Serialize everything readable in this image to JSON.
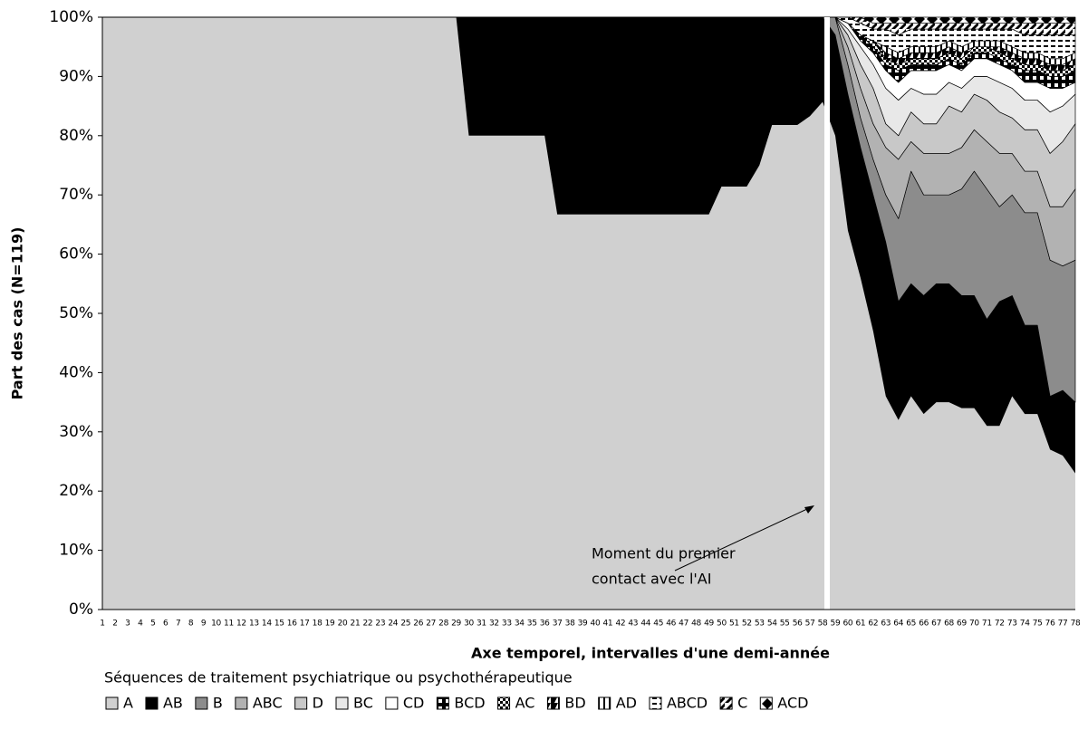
{
  "chart_data": {
    "type": "stacked_area_100",
    "y_label": "Part des cas (N=119)",
    "x_label": "Axe temporel, intervalles d'une demi-année",
    "legend_title": "Séquences de traitement psychiatrique ou psychothérapeutique",
    "legend_position": "bottom",
    "annotation": [
      "Moment du premier",
      "contact avec l'AI"
    ],
    "ylim": [
      0,
      100
    ],
    "yticks": [
      {
        "value": 0,
        "label": "0%"
      },
      {
        "value": 10,
        "label": "10%"
      },
      {
        "value": 20,
        "label": "20%"
      },
      {
        "value": 30,
        "label": "30%"
      },
      {
        "value": 40,
        "label": "40%"
      },
      {
        "value": 50,
        "label": "50%"
      },
      {
        "value": 60,
        "label": "60%"
      },
      {
        "value": 70,
        "label": "70%"
      },
      {
        "value": 80,
        "label": "80%"
      },
      {
        "value": 90,
        "label": "90%"
      },
      {
        "value": 100,
        "label": "100%"
      }
    ],
    "categories": [
      "1",
      "2",
      "3",
      "4",
      "5",
      "6",
      "7",
      "8",
      "9",
      "10",
      "11",
      "12",
      "13",
      "14",
      "15",
      "16",
      "17",
      "18",
      "19",
      "20",
      "21",
      "22",
      "23",
      "24",
      "25",
      "26",
      "27",
      "28",
      "29",
      "30",
      "31",
      "32",
      "33",
      "34",
      "35",
      "36",
      "37",
      "38",
      "39",
      "40",
      "41",
      "42",
      "43",
      "44",
      "45",
      "46",
      "47",
      "48",
      "49",
      "50",
      "51",
      "52",
      "53",
      "54",
      "55",
      "56",
      "57",
      "58",
      "59",
      "60",
      "61",
      "62",
      "63",
      "64",
      "65",
      "66",
      "67",
      "68",
      "69",
      "70",
      "71",
      "72",
      "73",
      "74",
      "75",
      "76",
      "77",
      "78"
    ],
    "series": [
      {
        "name": "A",
        "color": "#d0d0d0",
        "values": [
          100,
          100,
          100,
          100,
          100,
          100,
          100,
          100,
          100,
          100,
          100,
          100,
          100,
          100,
          100,
          100,
          100,
          100,
          100,
          100,
          100,
          100,
          100,
          100,
          100,
          100,
          100,
          100,
          100,
          80,
          80,
          80,
          80,
          80,
          80,
          80,
          66.7,
          66.7,
          66.7,
          66.7,
          66.7,
          66.7,
          66.7,
          66.7,
          66.7,
          66.7,
          66.7,
          66.7,
          66.7,
          71.4,
          71.4,
          71.4,
          75,
          81.8,
          81.8,
          81.8,
          83.3,
          85.7,
          80,
          64,
          56,
          47,
          36,
          32,
          36,
          33,
          35,
          35,
          34,
          34,
          31,
          31,
          36,
          33,
          33,
          27,
          26,
          23
        ]
      },
      {
        "name": "AB",
        "color": "#000000",
        "values": [
          0,
          0,
          0,
          0,
          0,
          0,
          0,
          0,
          0,
          0,
          0,
          0,
          0,
          0,
          0,
          0,
          0,
          0,
          0,
          0,
          0,
          0,
          0,
          0,
          0,
          0,
          0,
          0,
          0,
          20,
          20,
          20,
          20,
          20,
          20,
          20,
          33.3,
          33.3,
          33.3,
          33.3,
          33.3,
          33.3,
          33.3,
          33.3,
          33.3,
          33.3,
          33.3,
          33.3,
          33.3,
          28.6,
          28.6,
          28.6,
          25,
          18.2,
          18.2,
          18.2,
          16.7,
          14.3,
          17,
          23,
          22,
          23,
          26,
          20,
          19,
          20,
          20,
          20,
          19,
          19,
          18,
          21,
          17,
          15,
          15,
          9,
          11,
          12
        ]
      },
      {
        "name": "B",
        "color": "#8c8c8c",
        "values": [
          0,
          0,
          0,
          0,
          0,
          0,
          0,
          0,
          0,
          0,
          0,
          0,
          0,
          0,
          0,
          0,
          0,
          0,
          0,
          0,
          0,
          0,
          0,
          0,
          0,
          0,
          0,
          0,
          0,
          0,
          0,
          0,
          0,
          0,
          0,
          0,
          0,
          0,
          0,
          0,
          0,
          0,
          0,
          0,
          0,
          0,
          0,
          0,
          0,
          0,
          0,
          0,
          0,
          0,
          0,
          0,
          0,
          0,
          3,
          5,
          5,
          6,
          8,
          14,
          19,
          17,
          15,
          15,
          18,
          21,
          22,
          16,
          17,
          19,
          19,
          23,
          21,
          24
        ]
      },
      {
        "name": "ABC",
        "color": "#b2b2b2",
        "values": [
          0,
          0,
          0,
          0,
          0,
          0,
          0,
          0,
          0,
          0,
          0,
          0,
          0,
          0,
          0,
          0,
          0,
          0,
          0,
          0,
          0,
          0,
          0,
          0,
          0,
          0,
          0,
          0,
          0,
          0,
          0,
          0,
          0,
          0,
          0,
          0,
          0,
          0,
          0,
          0,
          0,
          0,
          0,
          0,
          0,
          0,
          0,
          0,
          0,
          0,
          0,
          0,
          0,
          0,
          0,
          0,
          0,
          0,
          0,
          3,
          5,
          6,
          8,
          10,
          5,
          7,
          7,
          7,
          7,
          7,
          8,
          9,
          7,
          7,
          7,
          9,
          10,
          12
        ]
      },
      {
        "name": "D",
        "color": "#c8c8c8",
        "values": [
          0,
          0,
          0,
          0,
          0,
          0,
          0,
          0,
          0,
          0,
          0,
          0,
          0,
          0,
          0,
          0,
          0,
          0,
          0,
          0,
          0,
          0,
          0,
          0,
          0,
          0,
          0,
          0,
          0,
          0,
          0,
          0,
          0,
          0,
          0,
          0,
          0,
          0,
          0,
          0,
          0,
          0,
          0,
          0,
          0,
          0,
          0,
          0,
          0,
          0,
          0,
          0,
          0,
          0,
          0,
          0,
          0,
          0,
          0,
          2,
          4,
          6,
          4,
          4,
          5,
          5,
          5,
          8,
          6,
          6,
          7,
          7,
          6,
          7,
          7,
          9,
          11,
          11
        ]
      },
      {
        "name": "BC",
        "color": "#e8e8e8",
        "values": [
          0,
          0,
          0,
          0,
          0,
          0,
          0,
          0,
          0,
          0,
          0,
          0,
          0,
          0,
          0,
          0,
          0,
          0,
          0,
          0,
          0,
          0,
          0,
          0,
          0,
          0,
          0,
          0,
          0,
          0,
          0,
          0,
          0,
          0,
          0,
          0,
          0,
          0,
          0,
          0,
          0,
          0,
          0,
          0,
          0,
          0,
          0,
          0,
          0,
          0,
          0,
          0,
          0,
          0,
          0,
          0,
          0,
          0,
          0,
          1,
          3,
          4,
          6,
          6,
          4,
          5,
          5,
          4,
          4,
          3,
          4,
          5,
          5,
          5,
          5,
          7,
          6,
          5
        ]
      },
      {
        "name": "CD",
        "color": "#ffffff",
        "values": [
          0,
          0,
          0,
          0,
          0,
          0,
          0,
          0,
          0,
          0,
          0,
          0,
          0,
          0,
          0,
          0,
          0,
          0,
          0,
          0,
          0,
          0,
          0,
          0,
          0,
          0,
          0,
          0,
          0,
          0,
          0,
          0,
          0,
          0,
          0,
          0,
          0,
          0,
          0,
          0,
          0,
          0,
          0,
          0,
          0,
          0,
          0,
          0,
          0,
          0,
          0,
          0,
          0,
          0,
          0,
          0,
          0,
          0,
          0,
          1,
          1,
          2,
          3,
          3,
          3,
          4,
          4,
          3,
          3,
          3,
          3,
          3,
          3,
          3,
          3,
          4,
          3,
          2
        ]
      },
      {
        "name": "BCD",
        "color": "#000000",
        "pattern": "corner",
        "values": [
          0,
          0,
          0,
          0,
          0,
          0,
          0,
          0,
          0,
          0,
          0,
          0,
          0,
          0,
          0,
          0,
          0,
          0,
          0,
          0,
          0,
          0,
          0,
          0,
          0,
          0,
          0,
          0,
          0,
          0,
          0,
          0,
          0,
          0,
          0,
          0,
          0,
          0,
          0,
          0,
          0,
          0,
          0,
          0,
          0,
          0,
          0,
          0,
          0,
          0,
          0,
          0,
          0,
          0,
          0,
          0,
          0,
          0,
          0,
          0,
          1,
          1,
          1,
          2,
          1,
          1,
          1,
          1,
          1,
          1,
          1,
          1,
          1,
          2,
          2,
          2,
          2,
          2
        ]
      },
      {
        "name": "AC",
        "color": "#000000",
        "pattern": "checker",
        "values": [
          0,
          0,
          0,
          0,
          0,
          0,
          0,
          0,
          0,
          0,
          0,
          0,
          0,
          0,
          0,
          0,
          0,
          0,
          0,
          0,
          0,
          0,
          0,
          0,
          0,
          0,
          0,
          0,
          0,
          0,
          0,
          0,
          0,
          0,
          0,
          0,
          0,
          0,
          0,
          0,
          0,
          0,
          0,
          0,
          0,
          0,
          0,
          0,
          0,
          0,
          0,
          0,
          0,
          0,
          0,
          0,
          0,
          0,
          0,
          0,
          0,
          1,
          1,
          1,
          1,
          1,
          1,
          1,
          1,
          1,
          1,
          1,
          1,
          1,
          1,
          1,
          1,
          1
        ]
      },
      {
        "name": "BD",
        "color": "#000000",
        "pattern": "half",
        "values": [
          0,
          0,
          0,
          0,
          0,
          0,
          0,
          0,
          0,
          0,
          0,
          0,
          0,
          0,
          0,
          0,
          0,
          0,
          0,
          0,
          0,
          0,
          0,
          0,
          0,
          0,
          0,
          0,
          0,
          0,
          0,
          0,
          0,
          0,
          0,
          0,
          0,
          0,
          0,
          0,
          0,
          0,
          0,
          0,
          0,
          0,
          0,
          0,
          0,
          0,
          0,
          0,
          0,
          0,
          0,
          0,
          0,
          0,
          0,
          0,
          0,
          0,
          1,
          1,
          1,
          1,
          1,
          1,
          1,
          0,
          0,
          1,
          1,
          1,
          1,
          1,
          1,
          1
        ]
      },
      {
        "name": "AD",
        "color": "#000000",
        "pattern": "vline",
        "values": [
          0,
          0,
          0,
          0,
          0,
          0,
          0,
          0,
          0,
          0,
          0,
          0,
          0,
          0,
          0,
          0,
          0,
          0,
          0,
          0,
          0,
          0,
          0,
          0,
          0,
          0,
          0,
          0,
          0,
          0,
          0,
          0,
          0,
          0,
          0,
          0,
          0,
          0,
          0,
          0,
          0,
          0,
          0,
          0,
          0,
          0,
          0,
          0,
          0,
          0,
          0,
          0,
          0,
          0,
          0,
          0,
          0,
          0,
          0,
          0,
          0,
          0,
          1,
          1,
          1,
          1,
          1,
          1,
          1,
          1,
          1,
          1,
          1,
          1,
          1,
          1,
          1,
          1
        ]
      },
      {
        "name": "ABCD",
        "color": "#000000",
        "pattern": "hline",
        "values": [
          0,
          0,
          0,
          0,
          0,
          0,
          0,
          0,
          0,
          0,
          0,
          0,
          0,
          0,
          0,
          0,
          0,
          0,
          0,
          0,
          0,
          0,
          0,
          0,
          0,
          0,
          0,
          0,
          0,
          0,
          0,
          0,
          0,
          0,
          0,
          0,
          0,
          0,
          0,
          0,
          0,
          0,
          0,
          0,
          0,
          0,
          0,
          0,
          0,
          0,
          0,
          0,
          0,
          0,
          0,
          0,
          0,
          0,
          0,
          1,
          2,
          2,
          3,
          3,
          3,
          3,
          3,
          2,
          3,
          2,
          2,
          2,
          3,
          3,
          3,
          4,
          4,
          3
        ]
      },
      {
        "name": "C",
        "color": "#000000",
        "pattern": "diag",
        "values": [
          0,
          0,
          0,
          0,
          0,
          0,
          0,
          0,
          0,
          0,
          0,
          0,
          0,
          0,
          0,
          0,
          0,
          0,
          0,
          0,
          0,
          0,
          0,
          0,
          0,
          0,
          0,
          0,
          0,
          0,
          0,
          0,
          0,
          0,
          0,
          0,
          0,
          0,
          0,
          0,
          0,
          0,
          0,
          0,
          0,
          0,
          0,
          0,
          0,
          0,
          0,
          0,
          0,
          0,
          0,
          0,
          0,
          0,
          0,
          0,
          1,
          1,
          1,
          2,
          1,
          1,
          1,
          1,
          1,
          1,
          1,
          1,
          1,
          2,
          2,
          2,
          2,
          2
        ]
      },
      {
        "name": "ACD",
        "color": "#000000",
        "pattern": "diamond",
        "values": [
          0,
          0,
          0,
          0,
          0,
          0,
          0,
          0,
          0,
          0,
          0,
          0,
          0,
          0,
          0,
          0,
          0,
          0,
          0,
          0,
          0,
          0,
          0,
          0,
          0,
          0,
          0,
          0,
          0,
          0,
          0,
          0,
          0,
          0,
          0,
          0,
          0,
          0,
          0,
          0,
          0,
          0,
          0,
          0,
          0,
          0,
          0,
          0,
          0,
          0,
          0,
          0,
          0,
          0,
          0,
          0,
          0,
          0,
          0,
          0,
          0,
          1,
          1,
          1,
          1,
          1,
          1,
          1,
          1,
          1,
          1,
          1,
          1,
          1,
          1,
          1,
          1,
          1
        ]
      }
    ]
  }
}
